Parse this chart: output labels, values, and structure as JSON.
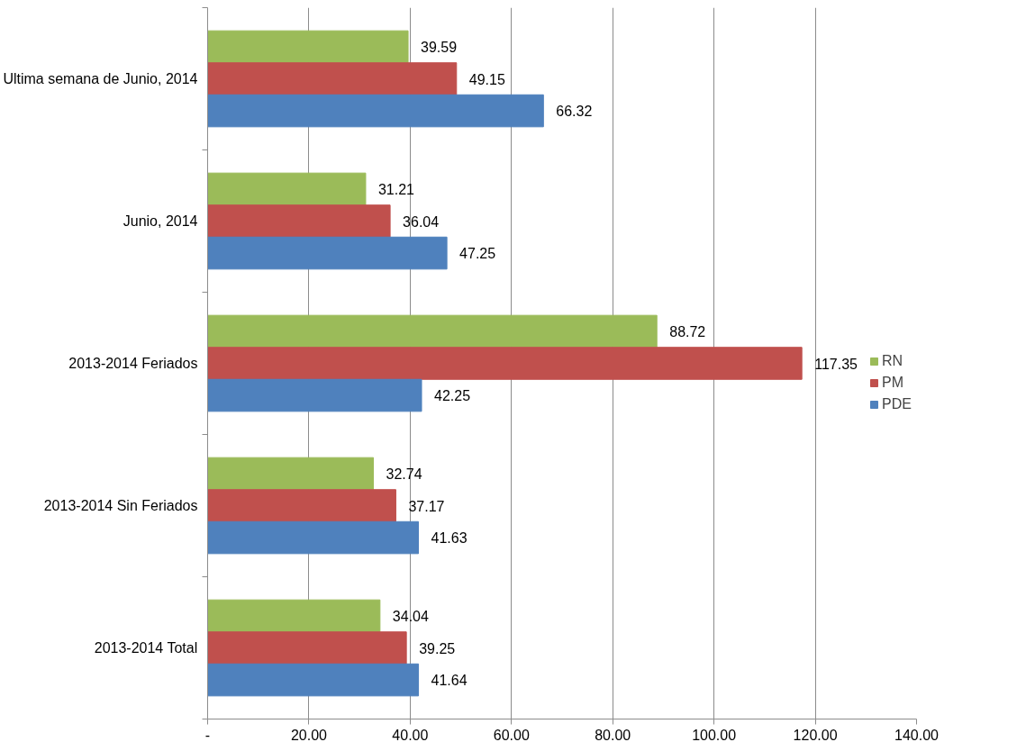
{
  "chart_data": {
    "type": "bar",
    "orientation": "horizontal",
    "categories": [
      "Ultima semana de Junio, 2014",
      "Junio, 2014",
      "2013-2014 Feriados",
      "2013-2014 Sin Feriados",
      "2013-2014 Total"
    ],
    "series": [
      {
        "name": "RN",
        "color": "#9bbb59",
        "values": [
          39.59,
          31.21,
          88.72,
          32.74,
          34.04
        ]
      },
      {
        "name": "PM",
        "color": "#c0504d",
        "values": [
          49.15,
          36.04,
          117.35,
          37.17,
          39.25
        ]
      },
      {
        "name": "PDE",
        "color": "#4f81bd",
        "values": [
          66.32,
          47.25,
          42.25,
          41.63,
          41.64
        ]
      }
    ],
    "xlim": [
      0,
      140
    ],
    "xticks": [
      {
        "value": 0,
        "label": "-"
      },
      {
        "value": 20,
        "label": "20.00"
      },
      {
        "value": 40,
        "label": "40.00"
      },
      {
        "value": 60,
        "label": "60.00"
      },
      {
        "value": 80,
        "label": "80.00"
      },
      {
        "value": 100,
        "label": "100.00"
      },
      {
        "value": 120,
        "label": "120.00"
      },
      {
        "value": 140,
        "label": "140.00"
      }
    ],
    "grid": "x",
    "legend": "right",
    "data_labels": true
  }
}
